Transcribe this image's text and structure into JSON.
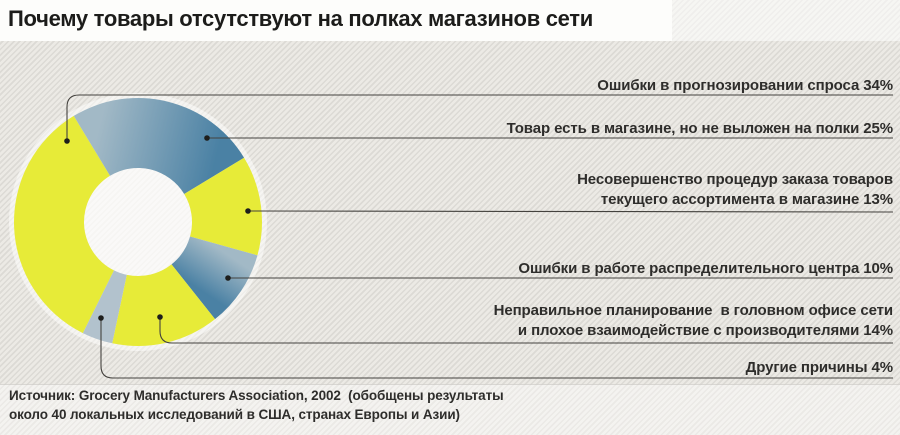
{
  "title": "Почему товары отсутствуют на полках магазинов сети",
  "source": {
    "line1": "Источник: Grocery Manufacturers Association, 2002  (обобщены результаты",
    "line2": "около 40 локальных исследований в США, странах Европы и Азии)"
  },
  "chart_data": {
    "type": "pie",
    "subtype": "donut",
    "title": "Почему товары отсутствуют на полках магазинов сети",
    "unit": "%",
    "start_angle_deg": 206.4,
    "clockwise": true,
    "legend_position": "right-callouts",
    "slices": [
      {
        "name": "Ошибки в прогнозировании спроса",
        "value": 34,
        "fill": "yellow",
        "label_lines": [
          "Ошибки в прогнозировании спроса 34%"
        ]
      },
      {
        "name": "Товар есть в магазине, но не выложен на полки",
        "value": 25,
        "fill": "blue-gradient",
        "label_lines": [
          "Товар есть в магазине, но не выложен на полки 25%"
        ]
      },
      {
        "name": "Несовершенство процедур заказа товаров текущего ассортимента в магазине",
        "value": 13,
        "fill": "yellow",
        "label_lines": [
          "Несовершенство процедур заказа товаров",
          "текущего ассортимента в магазине 13%"
        ]
      },
      {
        "name": "Ошибки в работе распределительного центра",
        "value": 10,
        "fill": "blue-gradient",
        "label_lines": [
          "Ошибки в работе распределительного центра 10%"
        ]
      },
      {
        "name": "Неправильное планирование в головном офисе сети и плохое взаимодействие с производителями",
        "value": 14,
        "fill": "yellow",
        "label_lines": [
          "Неправильное планирование  в головном офисе сети",
          "и плохое взаимодействие с производителями 14%"
        ]
      },
      {
        "name": "Другие причины",
        "value": 4,
        "fill": "light-blue",
        "label_lines": [
          "Другие причины 4%"
        ]
      }
    ],
    "palette": {
      "yellow": "#e7eb38",
      "blue_light": "#a2b9c6",
      "blue_dark": "#4a81a4",
      "light_blue": "#b2c2cd",
      "leader_line": "#44423e",
      "label_text": "#2e2d2b"
    }
  }
}
